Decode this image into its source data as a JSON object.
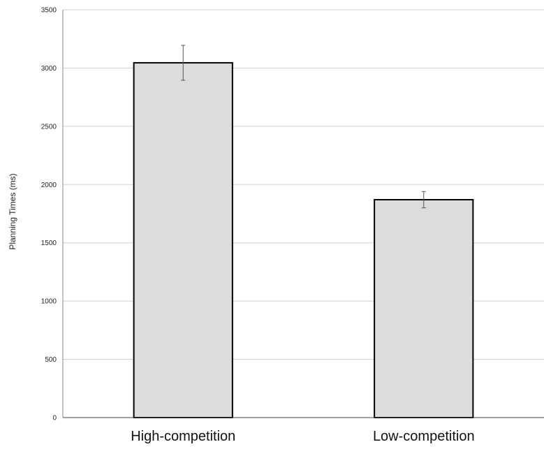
{
  "chart_data": {
    "type": "bar",
    "title": "",
    "xlabel": "",
    "ylabel": "Planning Times (ms)",
    "categories": [
      "High-competition",
      "Low-competition"
    ],
    "values": [
      3045,
      1870
    ],
    "error": [
      150,
      70
    ],
    "ylim": [
      0,
      3500
    ],
    "yticks": [
      0,
      500,
      1000,
      1500,
      2000,
      2500,
      3000,
      3500
    ],
    "grid": true,
    "legend": "none",
    "colors": {
      "bar_fill": "#dcdcdc",
      "bar_stroke": "#000000",
      "grid": "#cfcfcf",
      "error_bar": "#555555"
    }
  }
}
